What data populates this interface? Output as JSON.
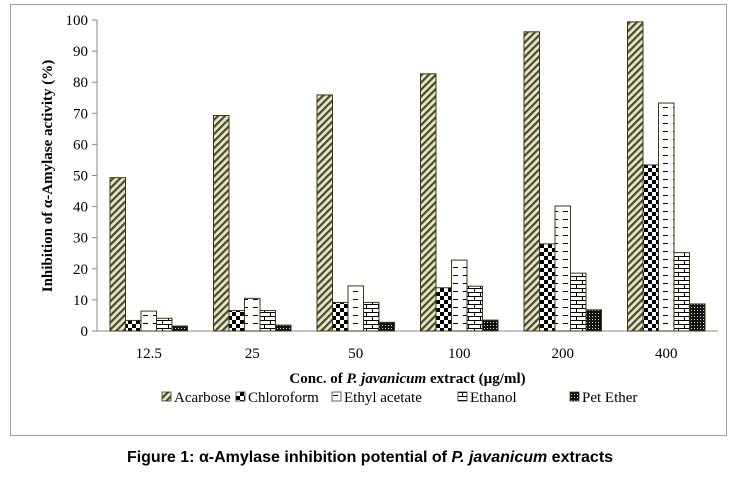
{
  "chart_data": {
    "type": "bar",
    "title": "",
    "xlabel_parts": [
      "Conc. of ",
      "P. javanicum",
      " extract (µg/ml)"
    ],
    "ylabel": "Inhibition of α-Amylase activity (%)",
    "ylim": [
      0,
      100
    ],
    "yticks": [
      0,
      10,
      20,
      30,
      40,
      50,
      60,
      70,
      80,
      90,
      100
    ],
    "grid": false,
    "legend_position": "bottom",
    "categories": [
      "12.5",
      "25",
      "50",
      "100",
      "200",
      "400"
    ],
    "series": [
      {
        "name": "Acarbose",
        "pattern": "diagonal",
        "values": [
          49.3,
          69.3,
          75.9,
          82.7,
          96.2,
          99.4
        ]
      },
      {
        "name": "Chloroform",
        "pattern": "checker",
        "values": [
          3.4,
          6.6,
          9.2,
          13.9,
          28.0,
          53.4
        ]
      },
      {
        "name": "Ethyl acetate",
        "pattern": "dash",
        "values": [
          6.4,
          10.5,
          14.5,
          22.8,
          40.2,
          73.3
        ]
      },
      {
        "name": "Ethanol",
        "pattern": "brick",
        "values": [
          4.1,
          6.6,
          9.2,
          14.4,
          18.6,
          25.2
        ]
      },
      {
        "name": "Pet Ether",
        "pattern": "dots",
        "values": [
          1.6,
          1.9,
          2.8,
          3.5,
          6.8,
          8.7
        ]
      }
    ]
  },
  "caption_parts": [
    "Figure 1: α-Amylase inhibition potential of ",
    "P. javanicum",
    " extracts"
  ]
}
